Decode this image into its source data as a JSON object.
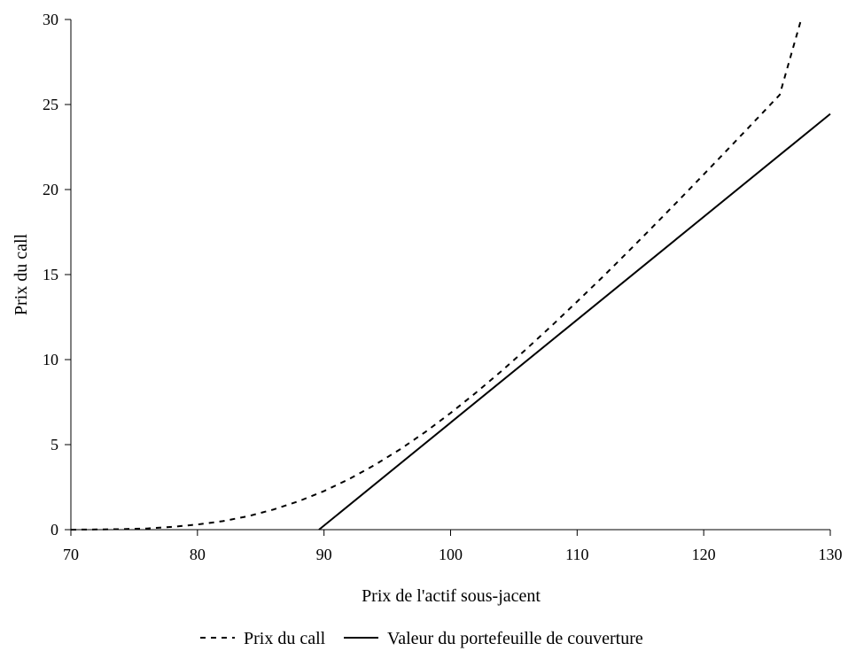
{
  "chart_data": {
    "type": "line",
    "title": "",
    "xlabel": "Prix de l'actif sous-jacent",
    "ylabel": "Prix du call",
    "xlim": [
      70,
      130
    ],
    "ylim": [
      0,
      30
    ],
    "x_ticks": [
      70,
      80,
      90,
      100,
      110,
      120,
      130
    ],
    "y_ticks": [
      0,
      5,
      10,
      15,
      20,
      25,
      30
    ],
    "grid": false,
    "legend_position": "bottom",
    "series": [
      {
        "name": "Prix du call",
        "style": "dashed",
        "color": "#000000",
        "x": [
          70,
          72,
          74,
          76,
          78,
          80,
          82,
          84,
          86,
          88,
          90,
          92,
          94,
          96,
          98,
          100,
          102,
          104,
          106,
          108,
          110,
          112,
          114,
          116,
          118,
          120,
          122,
          124,
          126,
          127.7
        ],
        "y": [
          0.0,
          0.01,
          0.03,
          0.07,
          0.16,
          0.3,
          0.5,
          0.79,
          1.18,
          1.67,
          2.27,
          2.98,
          3.8,
          4.72,
          5.74,
          6.86,
          8.05,
          9.31,
          10.63,
          12.0,
          13.41,
          14.85,
          16.33,
          17.83,
          19.35,
          20.89,
          22.44,
          24.0,
          25.57,
          30.0
        ]
      },
      {
        "name": "Valeur du portefeuille de couverture",
        "style": "solid",
        "color": "#000000",
        "x": [
          89.6,
          130
        ],
        "y": [
          0.0,
          24.45
        ]
      }
    ]
  }
}
